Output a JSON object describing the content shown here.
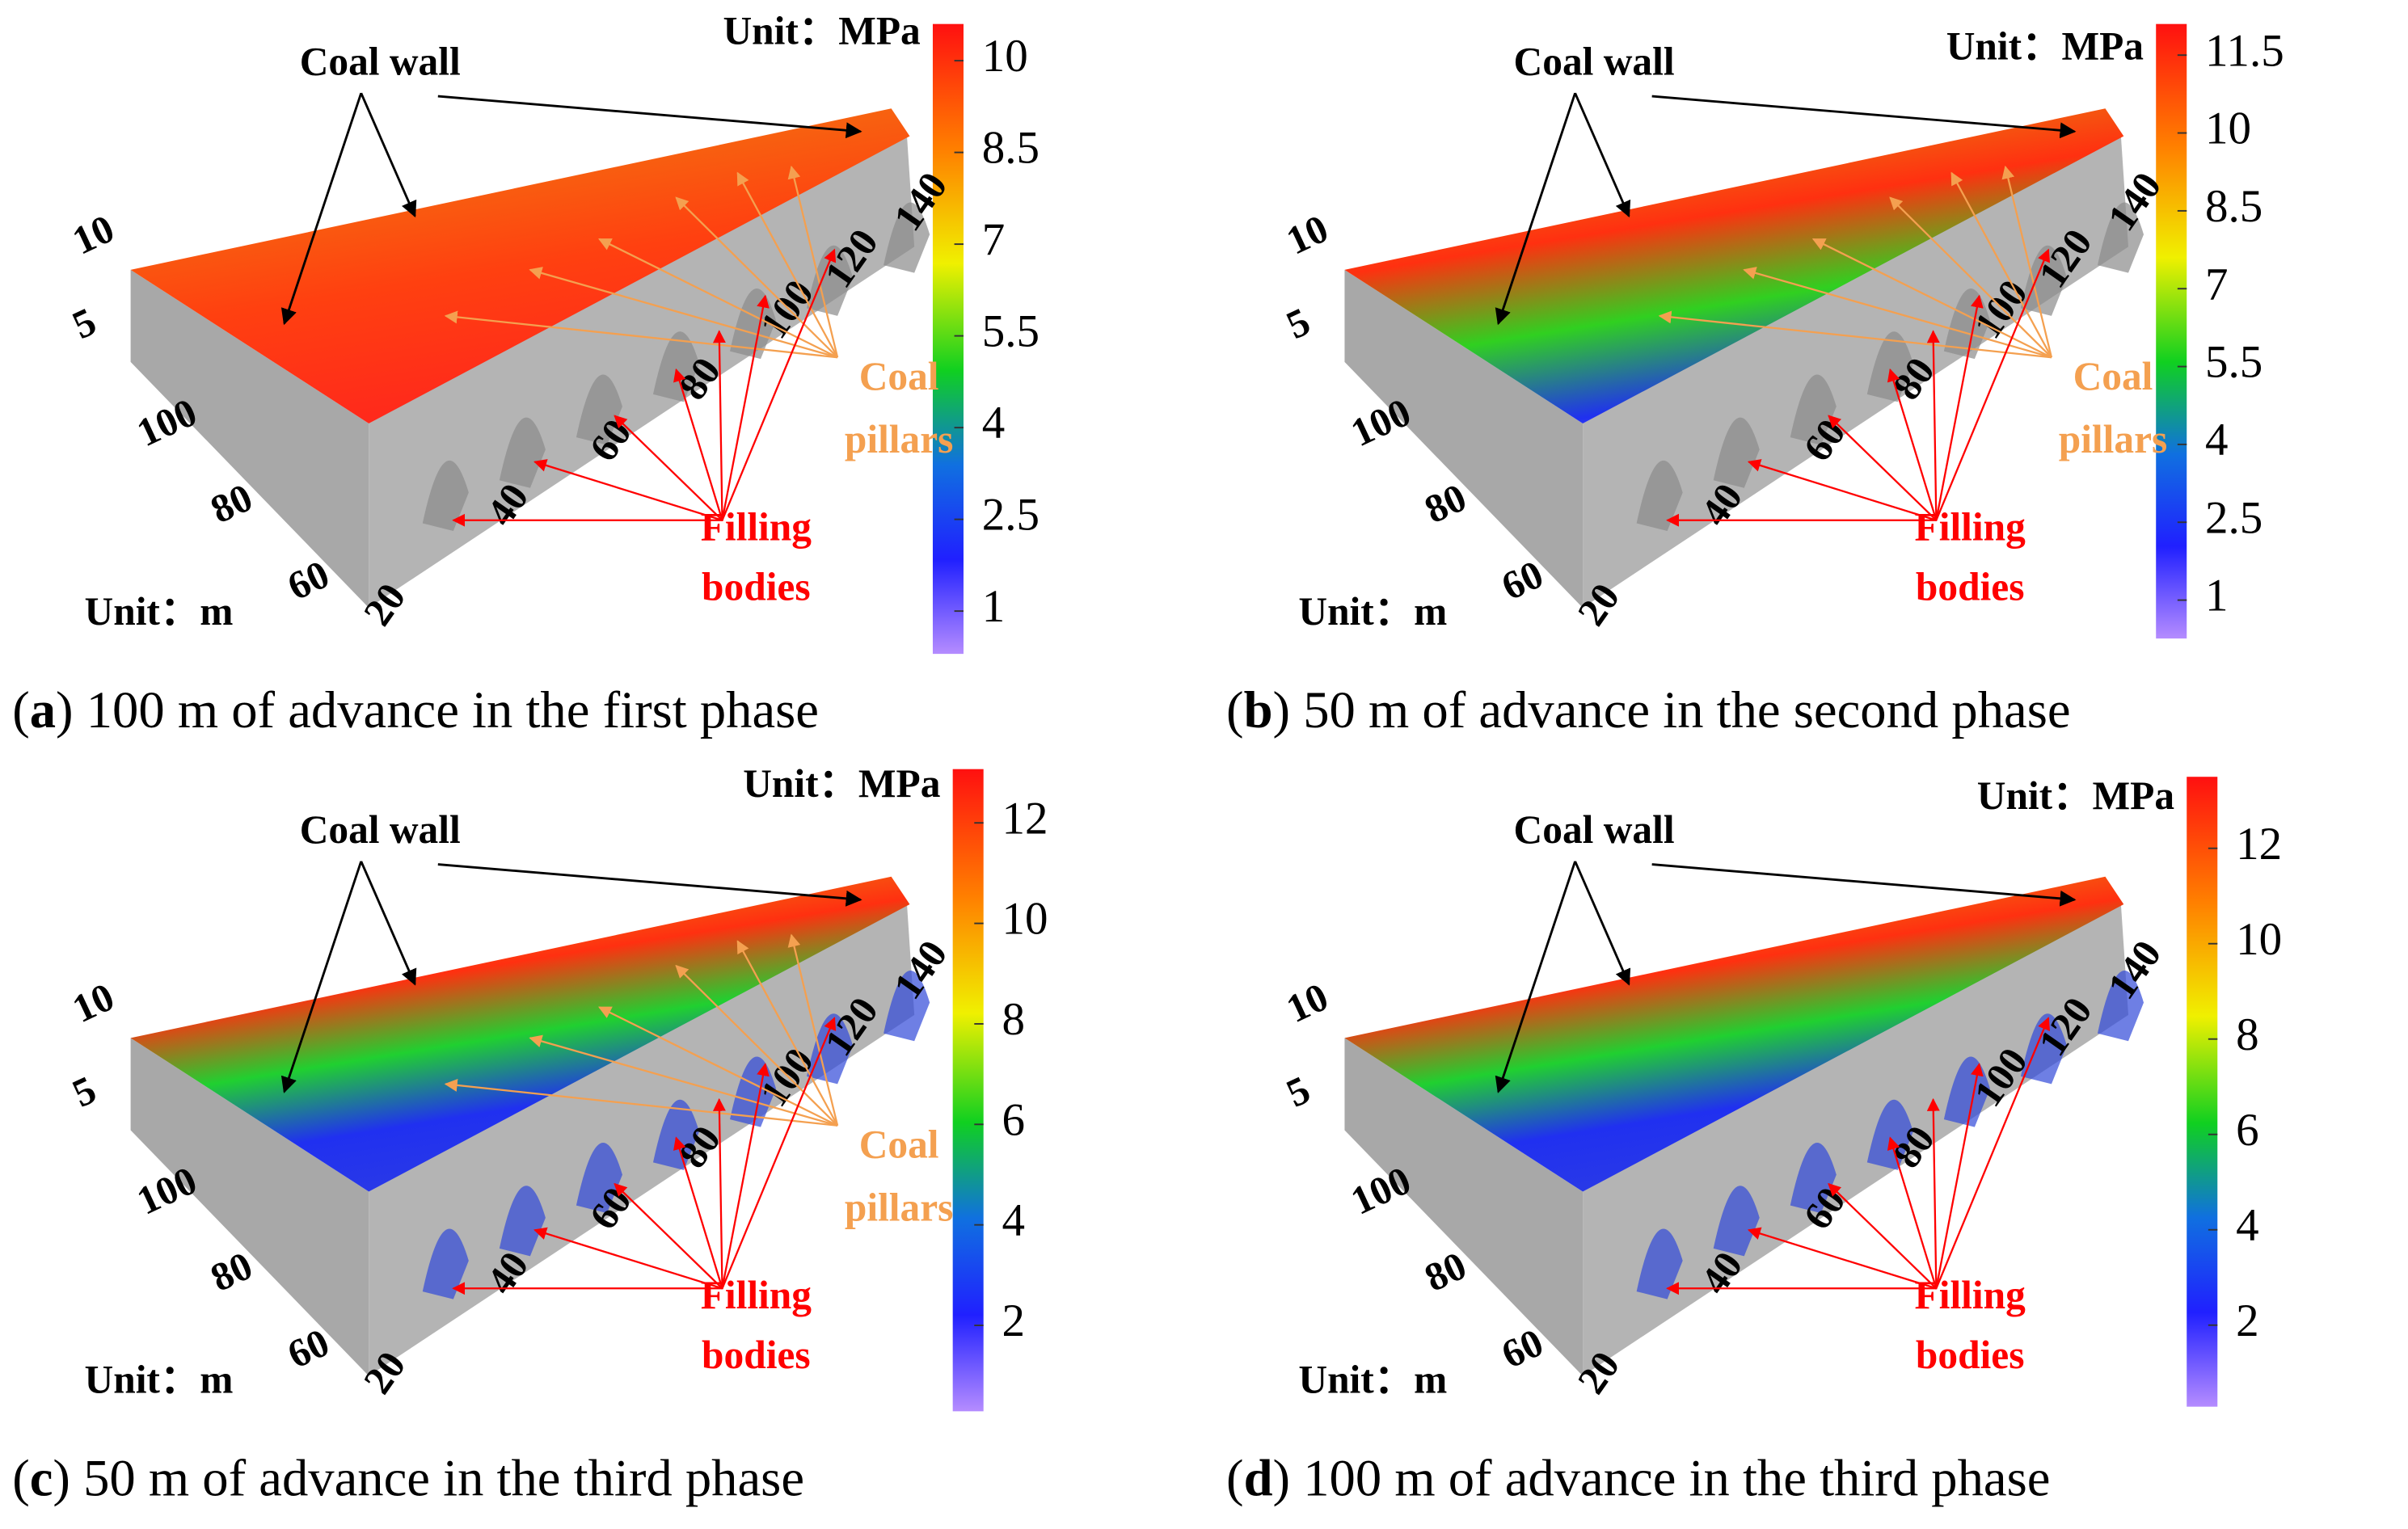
{
  "panels": [
    {
      "caption_runs": [
        "(",
        "a",
        ") 100 m of advance in the first phase"
      ],
      "stress_unit": "Unit：MPa",
      "length_unit": "Unit：m",
      "colorbar": {
        "range": [
          0.3,
          10.6
        ],
        "ticks": [
          10,
          8.5,
          7,
          5.5,
          4,
          2.5,
          1
        ]
      },
      "z_ticks": [
        10,
        5
      ],
      "y_ticks": [
        100,
        80,
        60
      ],
      "x_ticks": [
        20,
        40,
        60,
        80,
        100,
        120,
        140
      ],
      "coal_wall": "Coal wall",
      "coal_pillars": [
        "Coal",
        "pillars"
      ],
      "filling_bodies": [
        "Filling",
        "bodies"
      ]
    },
    {
      "caption_runs": [
        "(",
        "b",
        ") 50 m of advance in the second phase"
      ],
      "stress_unit": "Unit：MPa",
      "length_unit": "Unit：m",
      "colorbar": {
        "range": [
          0.26,
          12.1
        ],
        "ticks": [
          11.5,
          10,
          8.5,
          7,
          5.5,
          4,
          2.5,
          1
        ]
      },
      "z_ticks": [
        10,
        5
      ],
      "y_ticks": [
        100,
        80,
        60
      ],
      "x_ticks": [
        20,
        40,
        60,
        80,
        100,
        120,
        140
      ],
      "coal_wall": "Coal wall",
      "coal_pillars": [
        "Coal",
        "pillars"
      ],
      "filling_bodies": [
        "Filling",
        "bodies"
      ]
    },
    {
      "caption_runs": [
        "(",
        "c",
        ") 50 m of advance in the third phase"
      ],
      "stress_unit": "Unit：MPa",
      "length_unit": "Unit：m",
      "colorbar": {
        "range": [
          0.29,
          13.07
        ],
        "ticks": [
          12,
          10,
          8,
          6,
          4,
          2
        ]
      },
      "z_ticks": [
        10,
        5
      ],
      "y_ticks": [
        100,
        80,
        60
      ],
      "x_ticks": [
        20,
        40,
        60,
        80,
        100,
        120,
        140
      ],
      "coal_wall": "Coal wall",
      "coal_pillars": [
        "Coal",
        "pillars"
      ],
      "filling_bodies": [
        "Filling",
        "bodies"
      ]
    },
    {
      "caption_runs": [
        "(",
        "d",
        ") 100 m of advance in the third phase"
      ],
      "stress_unit": "Unit：MPa",
      "length_unit": "Unit：m",
      "colorbar": {
        "range": [
          0.29,
          13.5
        ],
        "ticks": [
          12,
          10,
          8,
          6,
          4,
          2
        ]
      },
      "z_ticks": [
        10,
        5
      ],
      "y_ticks": [
        100,
        80,
        60
      ],
      "x_ticks": [
        20,
        40,
        60,
        80,
        100,
        120,
        140
      ],
      "coal_wall": "Coal wall",
      "filling_bodies": [
        "Filling",
        "bodies"
      ]
    }
  ]
}
